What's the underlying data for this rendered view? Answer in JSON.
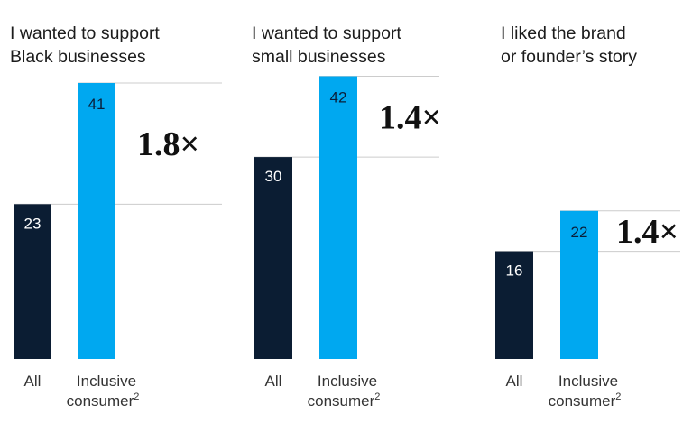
{
  "colors": {
    "all": "#0b1d33",
    "inclusive": "#00a8f0",
    "refline": "#cccccc"
  },
  "chart_data": [
    {
      "type": "bar",
      "title": [
        "I wanted to support",
        "Black businesses"
      ],
      "categories": [
        "All",
        "Inclusive consumer"
      ],
      "values": [
        23,
        41
      ],
      "multiplier": "1.8×"
    },
    {
      "type": "bar",
      "title": [
        "I wanted to support",
        "small businesses"
      ],
      "categories": [
        "All",
        "Inclusive consumer"
      ],
      "values": [
        30,
        42
      ],
      "multiplier": "1.4×"
    },
    {
      "type": "bar",
      "title": [
        "I liked the brand",
        "or founder’s story"
      ],
      "categories": [
        "All",
        "Inclusive consumer"
      ],
      "values": [
        16,
        22
      ],
      "multiplier": "1.4×"
    }
  ],
  "labels": {
    "all": "All",
    "inclusive_line1": "Inclusive",
    "inclusive_line2": "consumer",
    "footnote_mark": "2"
  }
}
